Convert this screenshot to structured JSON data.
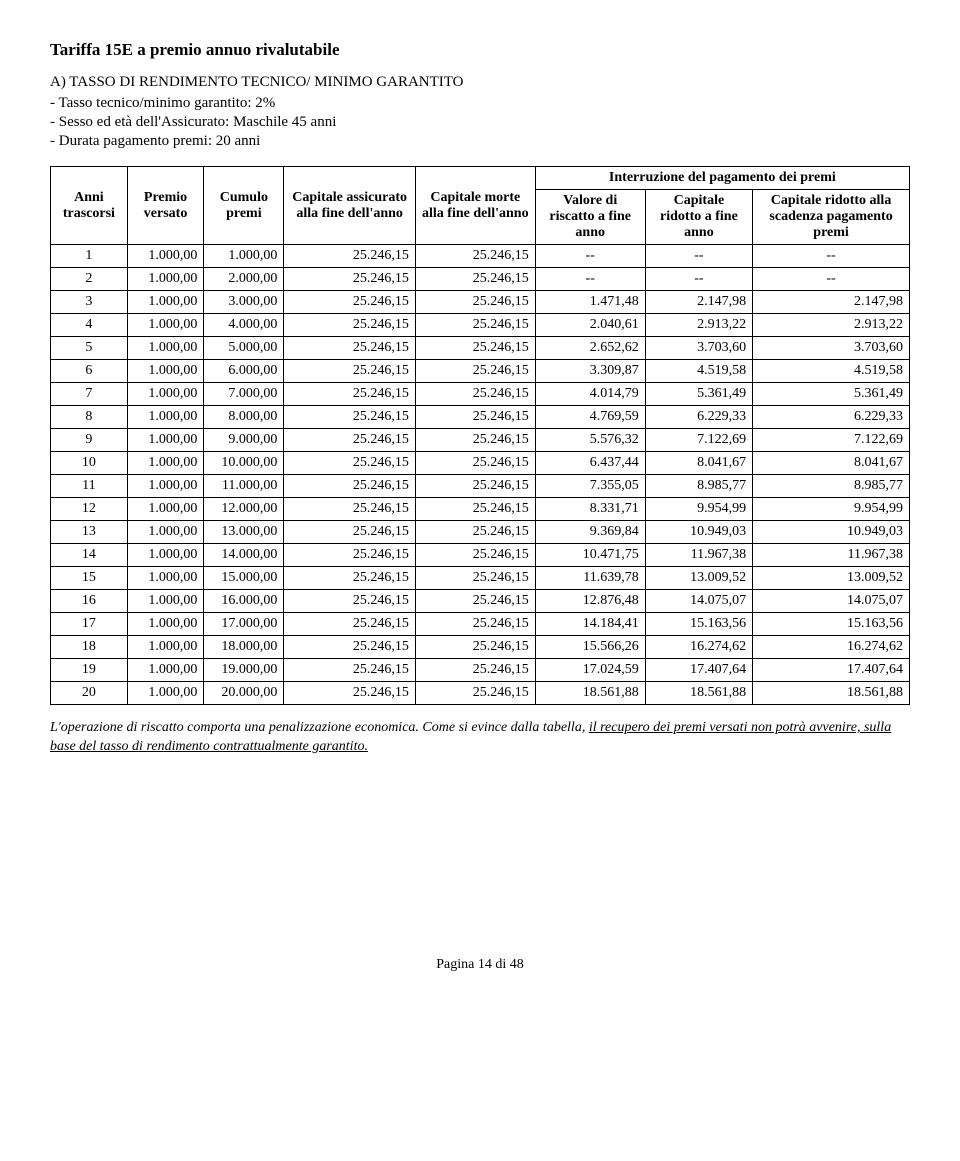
{
  "title": "Tariffa 15E a premio annuo rivalutabile",
  "section_header": "A) TASSO DI RENDIMENTO TECNICO/ MINIMO GARANTITO",
  "bullets": [
    "- Tasso tecnico/minimo garantito: 2%",
    "- Sesso ed età dell'Assicurato: Maschile 45 anni",
    "- Durata pagamento premi: 20 anni"
  ],
  "table": {
    "header_top": "Interruzione del pagamento dei premi",
    "columns": [
      "Anni trascorsi",
      "Premio versato",
      "Cumulo premi",
      "Capitale assicurato alla fine dell'anno",
      "Capitale morte alla fine dell'anno",
      "Valore di riscatto a fine anno",
      "Capitale ridotto a fine anno",
      "Capitale ridotto alla scadenza pagamento premi"
    ],
    "rows": [
      [
        "1",
        "1.000,00",
        "1.000,00",
        "25.246,15",
        "25.246,15",
        "--",
        "--",
        "--"
      ],
      [
        "2",
        "1.000,00",
        "2.000,00",
        "25.246,15",
        "25.246,15",
        "--",
        "--",
        "--"
      ],
      [
        "3",
        "1.000,00",
        "3.000,00",
        "25.246,15",
        "25.246,15",
        "1.471,48",
        "2.147,98",
        "2.147,98"
      ],
      [
        "4",
        "1.000,00",
        "4.000,00",
        "25.246,15",
        "25.246,15",
        "2.040,61",
        "2.913,22",
        "2.913,22"
      ],
      [
        "5",
        "1.000,00",
        "5.000,00",
        "25.246,15",
        "25.246,15",
        "2.652,62",
        "3.703,60",
        "3.703,60"
      ],
      [
        "6",
        "1.000,00",
        "6.000,00",
        "25.246,15",
        "25.246,15",
        "3.309,87",
        "4.519,58",
        "4.519,58"
      ],
      [
        "7",
        "1.000,00",
        "7.000,00",
        "25.246,15",
        "25.246,15",
        "4.014,79",
        "5.361,49",
        "5.361,49"
      ],
      [
        "8",
        "1.000,00",
        "8.000,00",
        "25.246,15",
        "25.246,15",
        "4.769,59",
        "6.229,33",
        "6.229,33"
      ],
      [
        "9",
        "1.000,00",
        "9.000,00",
        "25.246,15",
        "25.246,15",
        "5.576,32",
        "7.122,69",
        "7.122,69"
      ],
      [
        "10",
        "1.000,00",
        "10.000,00",
        "25.246,15",
        "25.246,15",
        "6.437,44",
        "8.041,67",
        "8.041,67"
      ],
      [
        "11",
        "1.000,00",
        "11.000,00",
        "25.246,15",
        "25.246,15",
        "7.355,05",
        "8.985,77",
        "8.985,77"
      ],
      [
        "12",
        "1.000,00",
        "12.000,00",
        "25.246,15",
        "25.246,15",
        "8.331,71",
        "9.954,99",
        "9.954,99"
      ],
      [
        "13",
        "1.000,00",
        "13.000,00",
        "25.246,15",
        "25.246,15",
        "9.369,84",
        "10.949,03",
        "10.949,03"
      ],
      [
        "14",
        "1.000,00",
        "14.000,00",
        "25.246,15",
        "25.246,15",
        "10.471,75",
        "11.967,38",
        "11.967,38"
      ],
      [
        "15",
        "1.000,00",
        "15.000,00",
        "25.246,15",
        "25.246,15",
        "11.639,78",
        "13.009,52",
        "13.009,52"
      ],
      [
        "16",
        "1.000,00",
        "16.000,00",
        "25.246,15",
        "25.246,15",
        "12.876,48",
        "14.075,07",
        "14.075,07"
      ],
      [
        "17",
        "1.000,00",
        "17.000,00",
        "25.246,15",
        "25.246,15",
        "14.184,41",
        "15.163,56",
        "15.163,56"
      ],
      [
        "18",
        "1.000,00",
        "18.000,00",
        "25.246,15",
        "25.246,15",
        "15.566,26",
        "16.274,62",
        "16.274,62"
      ],
      [
        "19",
        "1.000,00",
        "19.000,00",
        "25.246,15",
        "25.246,15",
        "17.024,59",
        "17.407,64",
        "17.407,64"
      ],
      [
        "20",
        "1.000,00",
        "20.000,00",
        "25.246,15",
        "25.246,15",
        "18.561,88",
        "18.561,88",
        "18.561,88"
      ]
    ]
  },
  "footnote": {
    "part1": "L'operazione di riscatto comporta una penalizzazione economica. Come si evince dalla tabella, ",
    "underline": "il recupero dei premi versati non potrà avvenire, sulla base del tasso di rendimento contrattualmente garantito.",
    "part3": ""
  },
  "page_footer": "Pagina 14 di 48"
}
